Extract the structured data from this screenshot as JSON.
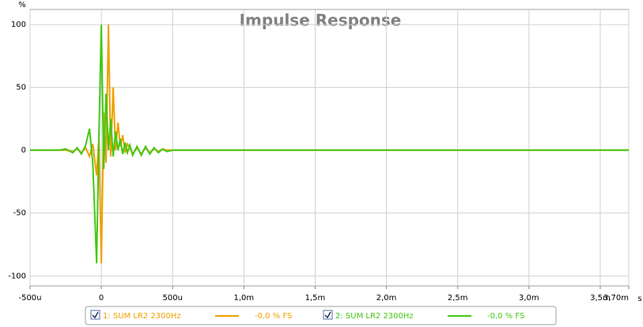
{
  "chart_data": {
    "type": "line",
    "title": "Impulse Response",
    "y_unit": "%",
    "x_unit": "s",
    "x": [
      -0.0005,
      -0.0003,
      -0.00025,
      -0.0002,
      -0.00017,
      -0.00014,
      -0.00011,
      -8.3e-05,
      -6e-05,
      -3.3e-05,
      -1.7e-05,
      0,
      1.7e-05,
      3.3e-05,
      5e-05,
      6.6e-05,
      8.3e-05,
      0.0001,
      0.000117,
      0.000133,
      0.00015,
      0.000167,
      0.000183,
      0.0002,
      0.00022,
      0.00025,
      0.00028,
      0.00031,
      0.00034,
      0.00037,
      0.0004,
      0.00043,
      0.00046,
      0.0005,
      0.0006,
      0.001,
      0.0037
    ],
    "series": [
      {
        "name": "1: SUM LR2 2300Hz",
        "color": "#f0a000",
        "legend_value": "-0,0 % FS",
        "values": [
          0,
          0,
          0,
          -1,
          1,
          -2,
          2,
          -5,
          5,
          -20,
          10,
          -90,
          30,
          -10,
          100,
          -5,
          50,
          0,
          22,
          3,
          12,
          -2,
          5,
          2,
          -3,
          2,
          -3,
          2,
          -2,
          1,
          -1,
          1,
          0,
          0,
          0,
          0,
          0
        ]
      },
      {
        "name": "2: SUM LR2 2300Hz",
        "color": "#44c814",
        "legend_value": "-0,0 % FS",
        "values": [
          0,
          0,
          1,
          -2,
          2,
          -3,
          4,
          17,
          -10,
          -90,
          10,
          100,
          -15,
          45,
          0,
          25,
          -5,
          15,
          0,
          9,
          -3,
          6,
          -2,
          4,
          -4,
          3,
          -4,
          3,
          -3,
          2,
          -2,
          1,
          -1,
          0,
          0,
          0,
          0
        ]
      }
    ],
    "xlim": [
      -0.0005,
      0.0037
    ],
    "ylim": [
      -108,
      112
    ],
    "xticks": [
      {
        "value": -0.0005,
        "label": "-500u"
      },
      0,
      {
        "value": 0.0005,
        "label": "500u"
      },
      {
        "value": 0.001,
        "label": "1,0m"
      },
      {
        "value": 0.0015,
        "label": "1,5m"
      },
      {
        "value": 0.002,
        "label": "2,0m"
      },
      {
        "value": 0.0025,
        "label": "2,5m"
      },
      {
        "value": 0.003,
        "label": "3,0m"
      },
      {
        "value": 0.0035,
        "label": "3,5m"
      },
      {
        "value": 0.0037,
        "label": "3,70m"
      }
    ],
    "yticks": [
      100,
      50,
      0,
      -50,
      -100
    ],
    "grid": true
  }
}
